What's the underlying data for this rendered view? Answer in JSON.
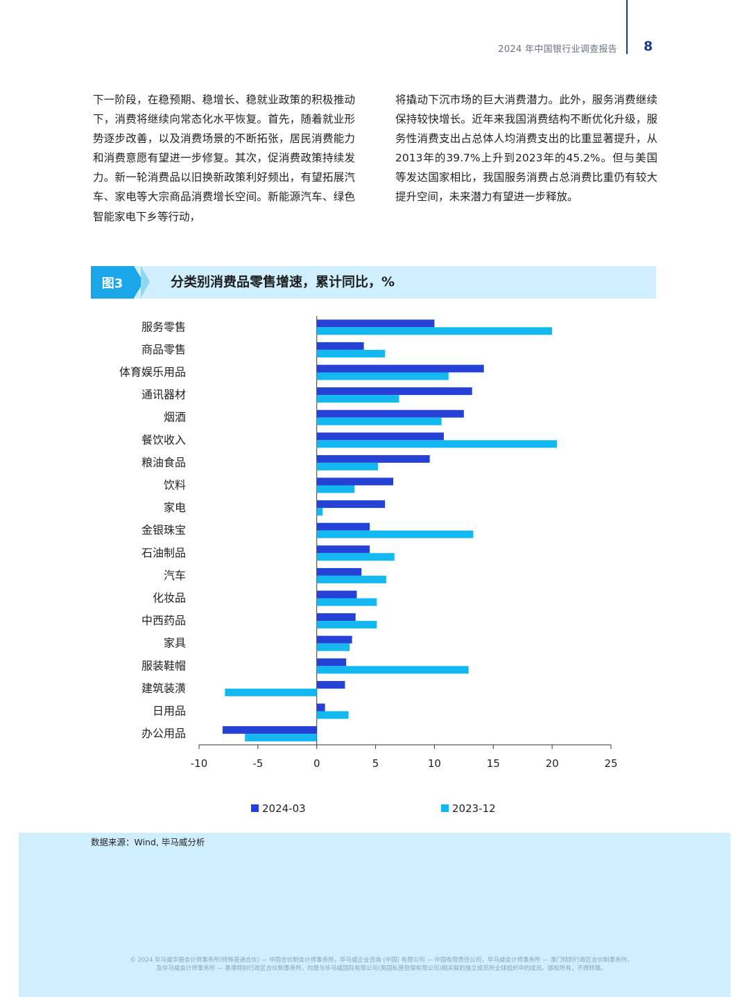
{
  "header": {
    "report_title": "2024 年中国银行业调查报告",
    "page_number": "8"
  },
  "body_text": {
    "left": "下一阶段，在稳预期、稳增长、稳就业政策的积极推动下，消费将继续向常态化水平恢复。首先，随着就业形势逐步改善，以及消费场景的不断拓张，居民消费能力和消费意愿有望进一步修复。其次，促消费政策持续发力。新一轮消费品以旧换新政策利好频出，有望拓展汽车、家电等大宗商品消费增长空间。新能源汽车、绿色智能家电下乡等行动，",
    "right": "将撬动下沉市场的巨大消费潜力。此外，服务消费继续保持较快增长。近年来我国消费结构不断优化升级，服务性消费支出占总体人均消费支出的比重显著提升，从2013年的39.7%上升到2023年的45.2%。但与美国等发达国家相比，我国服务消费占总消费比重仍有较大提升空间，未来潜力有望进一步释放。"
  },
  "figure": {
    "tag": "图3",
    "title": "分类别消费品零售增速，累计同比，%"
  },
  "chart_data": {
    "type": "bar",
    "orientation": "horizontal",
    "categories": [
      "服务零售",
      "商品零售",
      "体育娱乐用品",
      "通讯器材",
      "烟酒",
      "餐饮收入",
      "粮油食品",
      "饮料",
      "家电",
      "金银珠宝",
      "石油制品",
      "汽车",
      "化妆品",
      "中西药品",
      "家具",
      "服装鞋帽",
      "建筑装潢",
      "日用品",
      "办公用品"
    ],
    "series": [
      {
        "name": "2024-03",
        "color": "#2541d6",
        "values": [
          10.0,
          4.0,
          14.2,
          13.2,
          12.5,
          10.8,
          9.6,
          6.5,
          5.8,
          4.5,
          4.5,
          3.8,
          3.4,
          3.3,
          3.0,
          2.5,
          2.4,
          0.7,
          -8.0
        ]
      },
      {
        "name": "2023-12",
        "color": "#14b8f0",
        "values": [
          20.0,
          5.8,
          11.2,
          7.0,
          10.6,
          20.4,
          5.2,
          3.2,
          0.5,
          13.3,
          6.6,
          5.9,
          5.1,
          5.1,
          2.8,
          12.9,
          -7.8,
          2.7,
          -6.1
        ]
      }
    ],
    "xlim": [
      -10,
      25
    ],
    "xticks": [
      -10,
      -5,
      0,
      5,
      10,
      15,
      20,
      25
    ],
    "xtick_labels": [
      "-10",
      "-5",
      "0",
      "5",
      "10",
      "15",
      "20",
      "25"
    ],
    "legend_position": "bottom"
  },
  "source": "数据来源：Wind, 毕马威分析",
  "footer": "© 2024 毕马威华振会计师事务所(特殊普通合伙) — 中国合伙制会计师事务所，毕马威企业咨询 (中国) 有限公司 — 中国有限责任公司，毕马威会计师事务所 — 澳门特别行政区合伙制事务所，及毕马威会计师事务所 — 香港特别行政区合伙制事务所，均是与毕马威国际有限公司(英国私营担保有限公司)相关联的独立成员所全球组织中的成员。版权所有，不得转载。"
}
